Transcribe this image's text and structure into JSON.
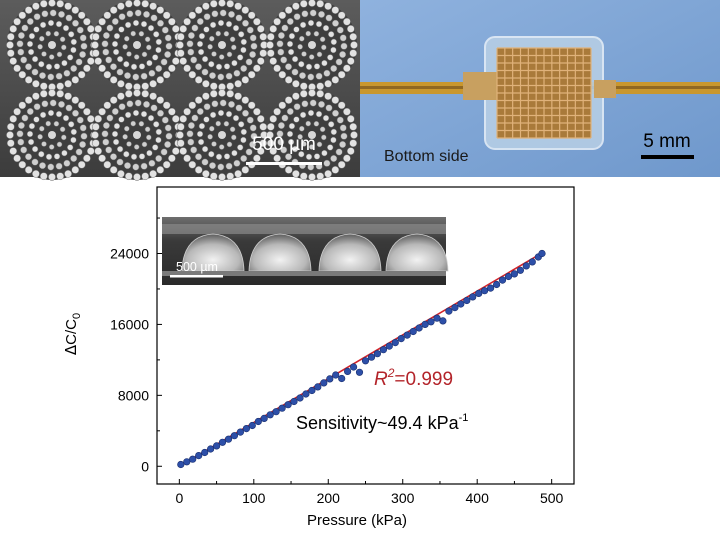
{
  "panels": {
    "sem_top": {
      "scale_label": "500 µm"
    },
    "photo": {
      "caption": "Bottom side",
      "scale_label": "5 mm"
    },
    "inset": {
      "scale_label": "500 µm"
    }
  },
  "annotations": {
    "r2_prefix": "R",
    "r2_sup": "2",
    "r2_value": "=0.999",
    "sensitivity_text": "Sensitivity~49.4 kPa",
    "sensitivity_sup": "-1"
  },
  "axis_labels": {
    "x": "Pressure (kPa)",
    "y_delta": "Δ",
    "y_c": "C/C",
    "y_sub": "0"
  },
  "colors": {
    "points": "#2d4fa8",
    "fit_line": "#d2232a",
    "r2_text": "#b3242a",
    "photo_bg": "#7ea6d6"
  },
  "chart_data": {
    "type": "scatter",
    "xlabel": "Pressure (kPa)",
    "ylabel": "ΔC/C0",
    "xlim": [
      -30,
      530
    ],
    "ylim": [
      -2000,
      31500
    ],
    "xticks": [
      0,
      100,
      200,
      300,
      400,
      500
    ],
    "yticks": [
      0,
      8000,
      16000,
      24000
    ],
    "fit": {
      "slope": 49.4,
      "intercept": 0,
      "x_range": [
        0,
        487
      ],
      "r2": 0.999
    },
    "series": [
      {
        "points": [
          [
            2,
            200
          ],
          [
            10,
            500
          ],
          [
            18,
            800
          ],
          [
            26,
            1200
          ],
          [
            34,
            1550
          ],
          [
            42,
            1950
          ],
          [
            50,
            2300
          ],
          [
            58,
            2700
          ],
          [
            66,
            3050
          ],
          [
            74,
            3450
          ],
          [
            82,
            3850
          ],
          [
            90,
            4250
          ],
          [
            98,
            4600
          ],
          [
            106,
            5050
          ],
          [
            114,
            5400
          ],
          [
            122,
            5800
          ],
          [
            130,
            6150
          ],
          [
            138,
            6550
          ],
          [
            146,
            6950
          ],
          [
            154,
            7300
          ],
          [
            162,
            7700
          ],
          [
            170,
            8150
          ],
          [
            178,
            8550
          ],
          [
            186,
            8950
          ],
          [
            194,
            9400
          ],
          [
            202,
            9850
          ],
          [
            210,
            10300
          ],
          [
            218,
            9900
          ],
          [
            226,
            10700
          ],
          [
            234,
            11200
          ],
          [
            242,
            10600
          ],
          [
            250,
            11900
          ],
          [
            258,
            12300
          ],
          [
            266,
            12700
          ],
          [
            274,
            13150
          ],
          [
            282,
            13550
          ],
          [
            290,
            13950
          ],
          [
            298,
            14400
          ],
          [
            306,
            14800
          ],
          [
            314,
            15200
          ],
          [
            322,
            15600
          ],
          [
            330,
            16000
          ],
          [
            338,
            16300
          ],
          [
            346,
            16700
          ],
          [
            354,
            16400
          ],
          [
            362,
            17500
          ],
          [
            370,
            17900
          ],
          [
            378,
            18300
          ],
          [
            386,
            18700
          ],
          [
            394,
            19100
          ],
          [
            402,
            19500
          ],
          [
            410,
            19800
          ],
          [
            418,
            20100
          ],
          [
            426,
            20500
          ],
          [
            434,
            21000
          ],
          [
            442,
            21400
          ],
          [
            450,
            21700
          ],
          [
            458,
            22100
          ],
          [
            466,
            22600
          ],
          [
            474,
            23050
          ],
          [
            482,
            23600
          ],
          [
            487,
            24000
          ]
        ]
      }
    ]
  }
}
